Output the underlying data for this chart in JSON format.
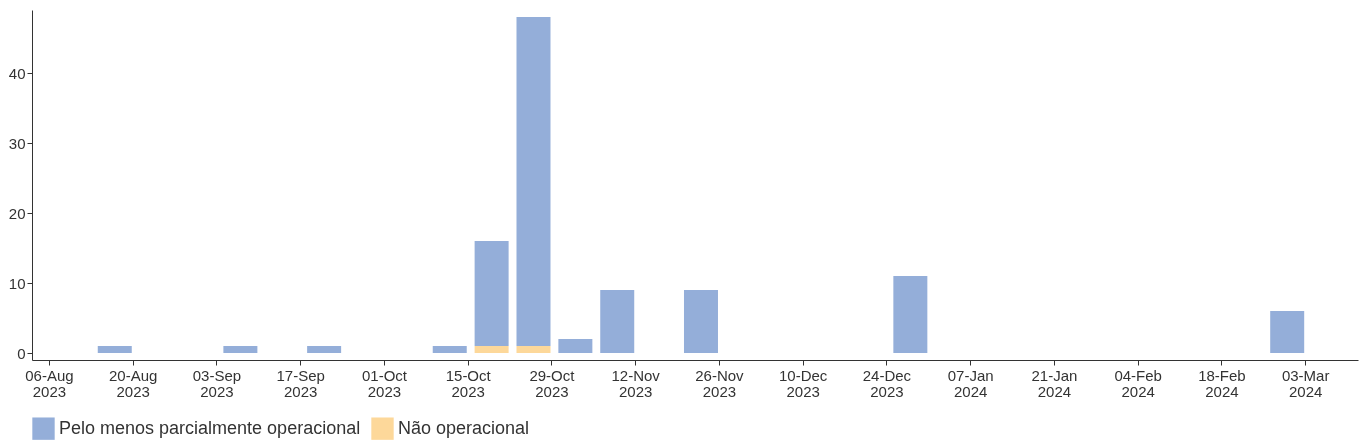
{
  "chart_data": {
    "type": "bar",
    "stacked": true,
    "x": [
      "2023-08-17",
      "2023-09-07",
      "2023-09-21",
      "2023-10-12",
      "2023-10-19",
      "2023-10-26",
      "2023-11-02",
      "2023-11-09",
      "2023-11-23",
      "2023-12-28",
      "2024-02-29"
    ],
    "series": [
      {
        "name": "Não operacional",
        "color": "#fdd89a",
        "values": [
          null,
          null,
          null,
          null,
          1,
          1,
          null,
          null,
          null,
          null,
          null
        ]
      },
      {
        "name": "Pelo menos parcialmente operacional",
        "color": "#94aed9",
        "values": [
          1,
          1,
          1,
          1,
          15,
          47,
          2,
          9,
          9,
          11,
          6
        ]
      }
    ],
    "xlim": [
      "2023-08-04",
      "2024-03-11"
    ],
    "xticks": [
      {
        "value": "2023-08-06",
        "label": "06-Aug 2023"
      },
      {
        "value": "2023-08-20",
        "label": "20-Aug 2023"
      },
      {
        "value": "2023-09-03",
        "label": "03-Sep 2023"
      },
      {
        "value": "2023-09-17",
        "label": "17-Sep 2023"
      },
      {
        "value": "2023-10-01",
        "label": "01-Oct 2023"
      },
      {
        "value": "2023-10-15",
        "label": "15-Oct 2023"
      },
      {
        "value": "2023-10-29",
        "label": "29-Oct 2023"
      },
      {
        "value": "2023-11-12",
        "label": "12-Nov 2023"
      },
      {
        "value": "2023-11-26",
        "label": "26-Nov 2023"
      },
      {
        "value": "2023-12-10",
        "label": "10-Dec 2023"
      },
      {
        "value": "2023-12-24",
        "label": "24-Dec 2023"
      },
      {
        "value": "2024-01-07",
        "label": "07-Jan 2024"
      },
      {
        "value": "2024-01-21",
        "label": "21-Jan 2024"
      },
      {
        "value": "2024-02-04",
        "label": "04-Feb 2024"
      },
      {
        "value": "2024-02-18",
        "label": "18-Feb 2024"
      },
      {
        "value": "2024-03-03",
        "label": "03-Mar 2024"
      }
    ],
    "ylim": [
      -1,
      49
    ],
    "yticks": [
      0,
      10,
      20,
      30,
      40
    ],
    "grid": false,
    "legend": "bottom"
  }
}
